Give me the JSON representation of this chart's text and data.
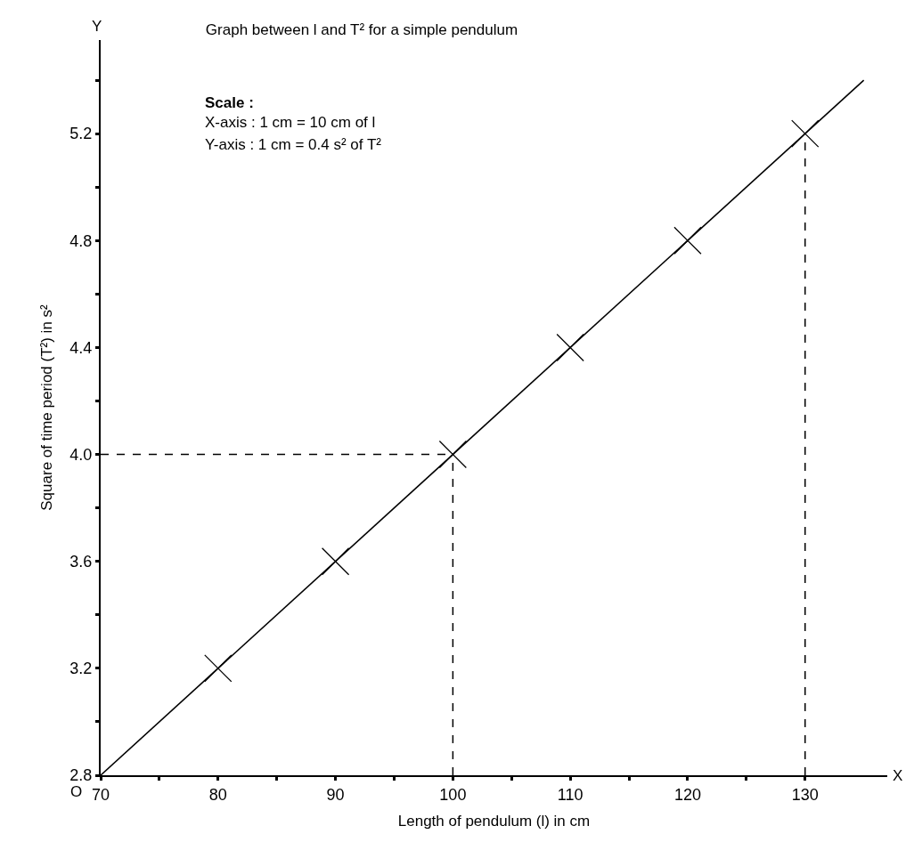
{
  "chart_data": {
    "type": "scatter",
    "title": "Graph between l and T² for a simple pendulum",
    "xlabel": "Length of pendulum (l) in cm",
    "ylabel": "Square of time period (T²) in s²",
    "annotations": [
      "Scale :",
      "X-axis : 1 cm = 10 cm of l",
      "Y-axis : 1 cm = 0.4 s² of T²",
      "O",
      "X",
      "Y"
    ],
    "series": [
      {
        "x": [
          80,
          90,
          100,
          110,
          120,
          130
        ],
        "values": [
          3.2,
          3.6,
          4.0,
          4.4,
          4.8,
          5.2
        ],
        "color": "#000000",
        "marker": "cross"
      },
      {
        "type": "line",
        "x": [
          70,
          135
        ],
        "values": [
          2.8,
          5.4
        ],
        "color": "#000000",
        "marker": "none",
        "line_style": "solid"
      }
    ],
    "xlim": [
      70,
      137
    ],
    "ylim": [
      2.8,
      5.55
    ],
    "xticks": [
      70,
      {
        "value": 75,
        "label": null
      },
      80,
      {
        "value": 85,
        "label": null
      },
      90,
      {
        "value": 95,
        "label": null
      },
      100,
      {
        "value": 105,
        "label": null
      },
      110,
      {
        "value": 115,
        "label": null
      },
      120,
      {
        "value": 125,
        "label": null
      },
      130
    ],
    "yticks": [
      2.8,
      {
        "value": 3.0,
        "label": null
      },
      3.2,
      {
        "value": 3.4,
        "label": null
      },
      3.6,
      {
        "value": 3.8,
        "label": null
      },
      {
        "value": 4.0,
        "label": "4.0"
      },
      {
        "value": 4.2,
        "label": null
      },
      4.4,
      {
        "value": 4.6,
        "label": null
      },
      4.8,
      {
        "value": 5.0,
        "label": null
      },
      5.2,
      {
        "value": 5.4,
        "label": null
      }
    ],
    "ref_lines": [
      {
        "axis": "y",
        "value": 4.0,
        "line_style": "dashed",
        "color": "#000000"
      },
      {
        "axis": "x",
        "value": 100,
        "line_style": "dashed",
        "color": "#000000"
      },
      {
        "axis": "x",
        "value": 130,
        "line_style": "dashed",
        "color": "#000000"
      }
    ],
    "grid": false,
    "legend": false
  }
}
